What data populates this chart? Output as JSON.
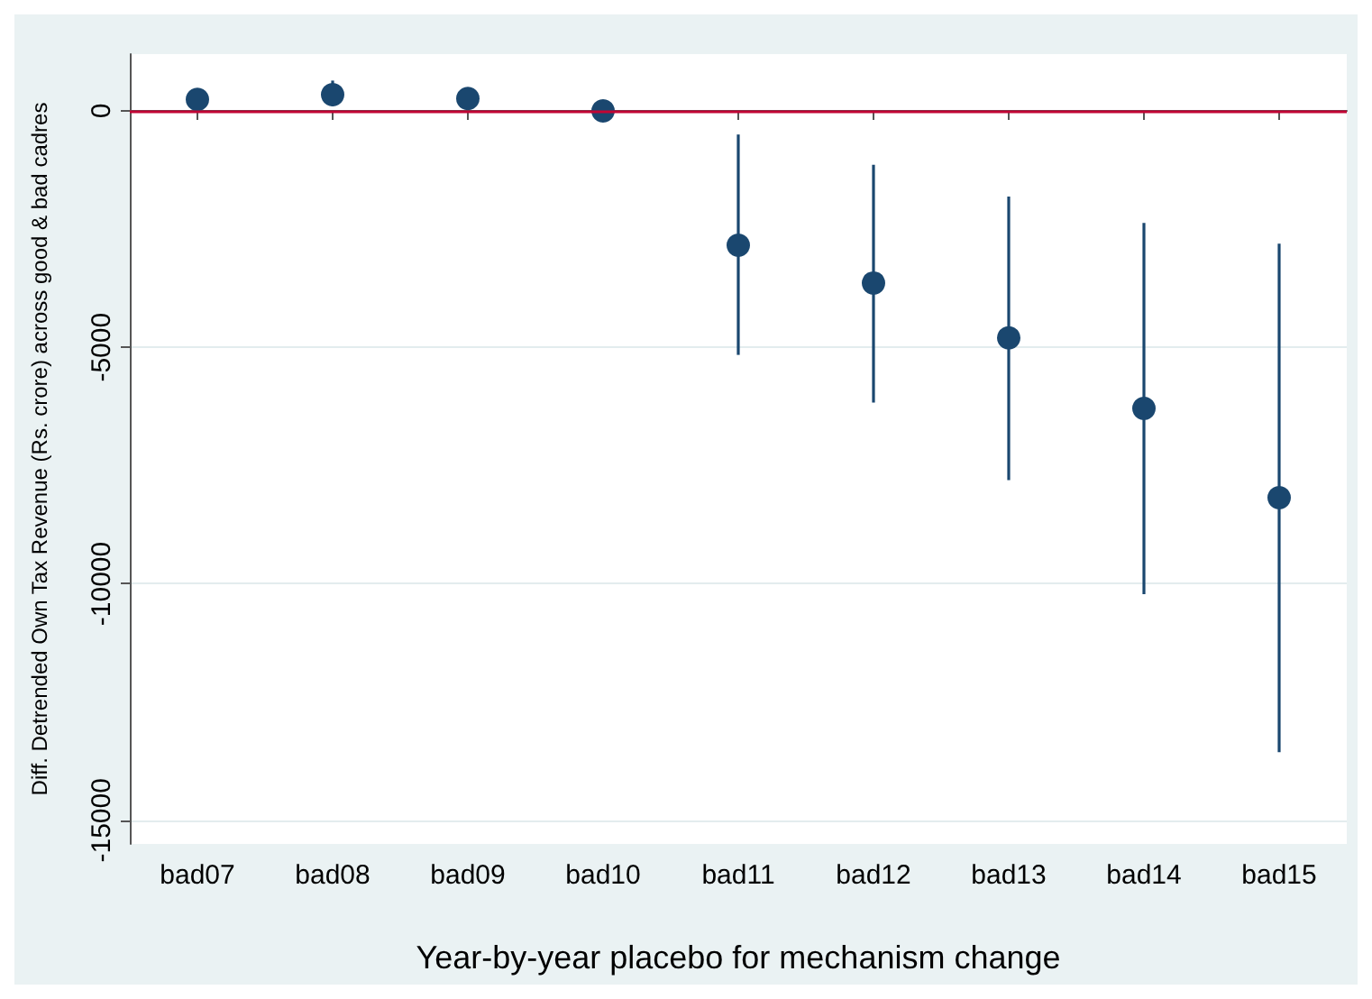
{
  "chart_data": {
    "type": "scatter",
    "xlabel": "Year-by-year placebo for mechanism change",
    "ylabel": "Diff. Detrended Own Tax Revenue (Rs. crore) across good & bad cadres",
    "categories": [
      "bad07",
      "bad08",
      "bad09",
      "bad10",
      "bad11",
      "bad12",
      "bad13",
      "bad14",
      "bad15"
    ],
    "series": [
      {
        "color": "#1a476f",
        "values": [
          240,
          340,
          260,
          0,
          -2840,
          -3640,
          -4800,
          -6290,
          -8180
        ],
        "errors": [
          null,
          [
            100,
            640
          ],
          null,
          null,
          [
            -5160,
            -500
          ],
          [
            -6170,
            -1140
          ],
          [
            -7810,
            -1810
          ],
          [
            -10220,
            -2370
          ],
          [
            -13560,
            -2810
          ]
        ]
      }
    ],
    "ylim": [
      -15500,
      1200
    ],
    "yticks": [
      -15000,
      -10000,
      -5000,
      0
    ],
    "grid": "y",
    "marker": "circle",
    "ref_lines": [
      {
        "axis": "y",
        "value": 0,
        "color": "#c10534"
      }
    ]
  }
}
